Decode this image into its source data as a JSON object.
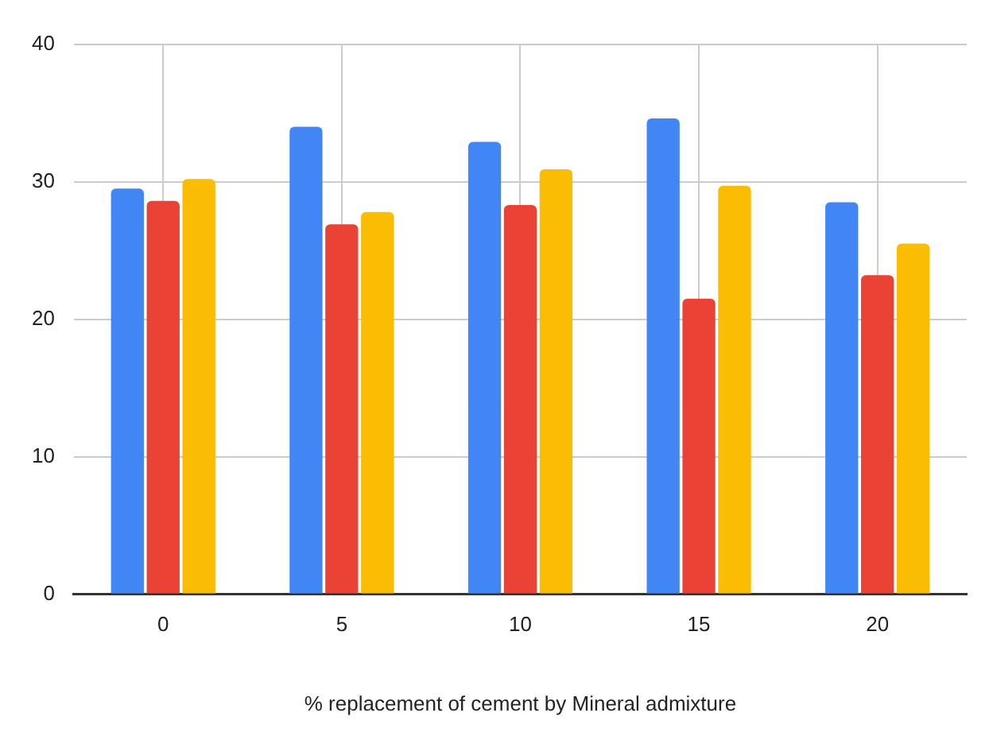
{
  "chart_data": {
    "type": "bar",
    "xlabel": "% replacement of cement by Mineral admixture",
    "categories": [
      "0",
      "5",
      "10",
      "15",
      "20"
    ],
    "series": [
      {
        "color": "#4285f4",
        "values": [
          29.5,
          34.0,
          32.9,
          34.6,
          28.5
        ]
      },
      {
        "color": "#ea4335",
        "values": [
          28.6,
          26.9,
          28.3,
          21.5,
          23.2
        ]
      },
      {
        "color": "#fbbc04",
        "values": [
          30.2,
          27.8,
          30.9,
          29.7,
          25.5
        ]
      }
    ],
    "ylim": [
      0,
      40
    ],
    "yticks": [
      0,
      10,
      20,
      30,
      40
    ],
    "grid": true,
    "legend": false
  }
}
